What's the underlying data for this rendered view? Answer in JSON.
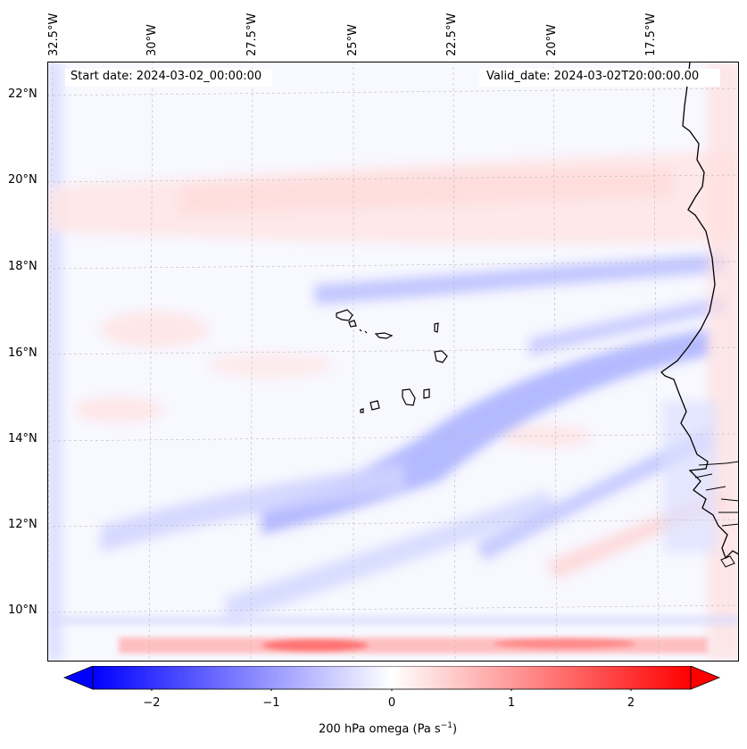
{
  "map": {
    "start_label": "Start date: 2024-03-02_00:00:00",
    "valid_label": "Valid_date: 2024-03-02T20:00:00.00",
    "lon_labels": [
      "32.5°W",
      "30°W",
      "27.5°W",
      "25°W",
      "22.5°W",
      "20°W",
      "17.5°W"
    ],
    "lat_labels": [
      "22°N",
      "20°N",
      "18°N",
      "16°N",
      "14°N",
      "12°N",
      "10°N"
    ],
    "field": "200 hPa omega",
    "grid": "dashed graticule",
    "coastline_color": "#000000"
  },
  "colorbar": {
    "ticks": [
      "−2",
      "−1",
      "0",
      "1",
      "2"
    ],
    "label": "200 hPa omega (Pa s",
    "label_sup": "−1",
    "label_end": ")",
    "range": [
      -2.6,
      2.6
    ],
    "colormap": "bwr",
    "extend": "both",
    "min_color": "#0000ff",
    "mid_color": "#ffffff",
    "max_color": "#ff0000"
  }
}
